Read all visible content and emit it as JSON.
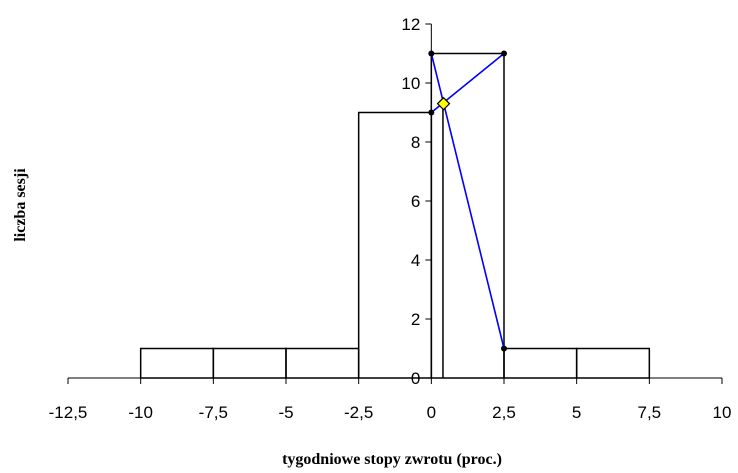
{
  "chart_data": {
    "type": "histogram",
    "xlabel": "tygodniowe stopy zwrotu (proc.)",
    "ylabel": "liczba sesji",
    "xlim": [
      -12.5,
      10
    ],
    "ylim": [
      0,
      12
    ],
    "x_ticks": [
      "-12,5",
      "-10",
      "-7,5",
      "-5",
      "-2,5",
      "0",
      "2,5",
      "5",
      "7,5",
      "10"
    ],
    "y_ticks": [
      "0",
      "2",
      "4",
      "6",
      "8",
      "10",
      "12"
    ],
    "bins": [
      {
        "x0": -10,
        "x1": -7.5,
        "count": 1
      },
      {
        "x0": -7.5,
        "x1": -5,
        "count": 1
      },
      {
        "x0": -5,
        "x1": -2.5,
        "count": 1
      },
      {
        "x0": -2.5,
        "x1": 0,
        "count": 9
      },
      {
        "x0": 0,
        "x1": 2.5,
        "count": 11
      },
      {
        "x0": 2.5,
        "x1": 5,
        "count": 1
      },
      {
        "x0": 5,
        "x1": 7.5,
        "count": 1
      }
    ],
    "median_line_x": 0.4,
    "construction_lines": [
      {
        "from": [
          0,
          11
        ],
        "to": [
          2.5,
          1
        ]
      },
      {
        "from": [
          0,
          9
        ],
        "to": [
          2.5,
          11
        ]
      }
    ],
    "construction_points": [
      [
        0,
        11
      ],
      [
        0,
        9
      ],
      [
        2.5,
        11
      ],
      [
        2.5,
        1
      ]
    ],
    "mode_point": {
      "x": 0.42,
      "y": 9.3
    },
    "colors": {
      "bars": "#000000",
      "lines": "#0000ff",
      "marker_fill": "#ffff00",
      "marker_stroke": "#000000"
    }
  }
}
